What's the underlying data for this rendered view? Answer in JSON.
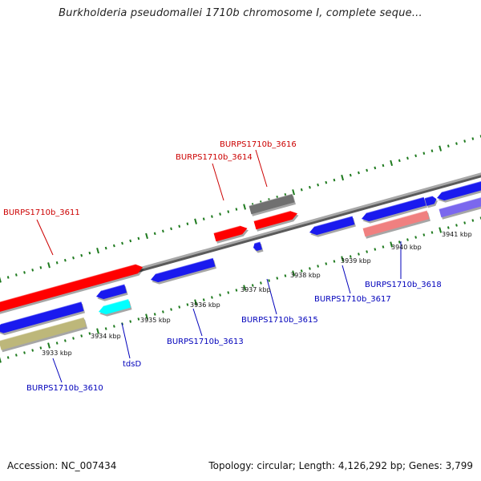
{
  "title": "Burkholderia pseudomallei 1710b chromosome I, complete seque...",
  "footer": {
    "accession": "Accession: NC_007434",
    "summary": "Topology: circular; Length: 4,126,292 bp; Genes: 3,799"
  },
  "colors": {
    "backbone": "#8c8c8c",
    "ticks": "#1e7a1e",
    "label_forward": "#cc0000",
    "label_reverse": "#0000bb",
    "red": "#ff0000",
    "blue": "#1a1aee",
    "cyan": "#00ffff",
    "olive": "#bdb77a",
    "gray": "#707070",
    "pink": "#f08080",
    "slate": "#7b68ee"
  },
  "scale_labels": [
    "3933 kbp",
    "3934 kbp",
    "3935 kbp",
    "3936 kbp",
    "3937 kbp",
    "3938 kbp",
    "3939 kbp",
    "3940 kbp",
    "3941 kbp"
  ],
  "gene_labels": [
    {
      "text": "BURPS1710b_3616",
      "strand": "forward"
    },
    {
      "text": "BURPS1710b_3614",
      "strand": "forward"
    },
    {
      "text": "BURPS1710b_3611",
      "strand": "forward"
    },
    {
      "text": "BURPS1710b_3613",
      "strand": "reverse"
    },
    {
      "text": "BURPS1710b_3615",
      "strand": "reverse"
    },
    {
      "text": "BURPS1710b_3617",
      "strand": "reverse"
    },
    {
      "text": "BURPS1710b_3618",
      "strand": "reverse"
    },
    {
      "text": "tdsD",
      "strand": "reverse"
    },
    {
      "text": "BURPS1710b_3610",
      "strand": "reverse"
    }
  ]
}
